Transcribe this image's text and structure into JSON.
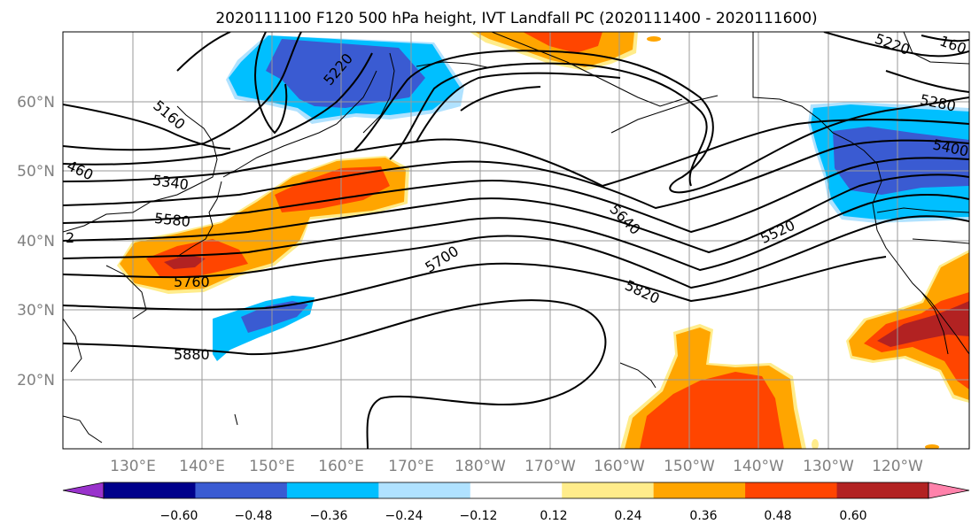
{
  "title": "2020111100 F120 500 hPa height, IVT Landfall PC (2020111400 - 2020111600)",
  "lon_labels": [
    "130°E",
    "140°E",
    "150°E",
    "160°E",
    "170°E",
    "180°W",
    "170°W",
    "160°W",
    "150°W",
    "140°W",
    "130°W",
    "120°W"
  ],
  "lat_labels": [
    "20°N",
    "30°N",
    "40°N",
    "50°N",
    "60°N"
  ],
  "contour_labels": [
    "5160",
    "5220",
    "5220",
    "5280",
    "5340",
    "5400",
    "460",
    "5520",
    "5580",
    "5640",
    "5700",
    "5760",
    "5820",
    "5880",
    "160",
    "2"
  ],
  "colorbar": {
    "ticks": [
      "−0.60",
      "−0.48",
      "−0.36",
      "−0.24",
      "−0.12",
      "0.12",
      "0.24",
      "0.36",
      "0.48",
      "0.60"
    ],
    "colors": [
      "#9932cc",
      "#00008b",
      "#3a5bd2",
      "#00bfff",
      "#b0e2ff",
      "#ffffff",
      "#ffec8b",
      "#ffa500",
      "#ff4500",
      "#b22222",
      "#ff82ab"
    ]
  },
  "fill_colors": {
    "neg_light": "#b0e2ff",
    "neg_mid": "#00bfff",
    "neg_strong": "#3a5bd2",
    "pos_light": "#ffec8b",
    "pos_mid": "#ffa500",
    "pos_strong": "#ff4500",
    "pos_max": "#b22222"
  }
}
